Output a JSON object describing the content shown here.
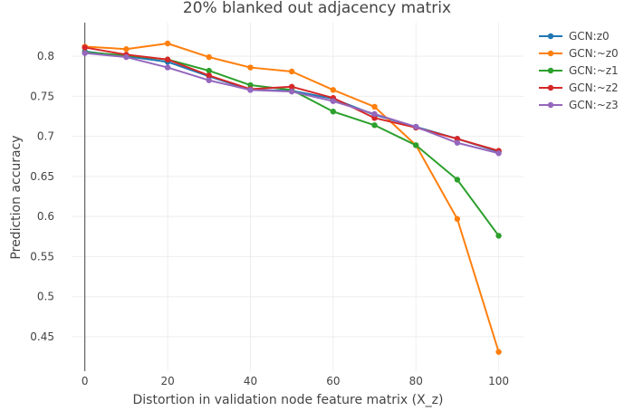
{
  "chart_data": {
    "type": "line",
    "title": "20% blanked out adjacency matrix",
    "xlabel": "Distortion in validation node feature matrix (X_z)",
    "ylabel": "Prediction accuracy",
    "xlim": [
      -3,
      106
    ],
    "ylim": [
      0.407,
      0.842
    ],
    "x_ticks": [
      0,
      20,
      40,
      60,
      80,
      100
    ],
    "x_tick_labels": [
      "0",
      "20",
      "40",
      "60",
      "80",
      "100"
    ],
    "y_ticks": [
      0.45,
      0.5,
      0.55,
      0.6,
      0.65,
      0.7,
      0.75,
      0.8
    ],
    "y_tick_labels": [
      "0.45",
      "0.5",
      "0.55",
      "0.6",
      "0.65",
      "0.7",
      "0.75",
      "0.8"
    ],
    "grid": true,
    "legend_position": "top-right",
    "x": [
      0,
      10,
      20,
      30,
      40,
      50,
      60,
      70,
      80,
      90,
      100
    ],
    "series": [
      {
        "name": "GCN:z0",
        "color": "#1f77b4",
        "values": [
          0.806,
          0.8,
          0.793,
          0.775,
          0.758,
          0.757,
          0.747,
          0.727,
          0.712,
          0.697,
          0.681
        ]
      },
      {
        "name": "GCN:~z0",
        "color": "#ff7f0e",
        "values": [
          0.812,
          0.809,
          0.816,
          0.799,
          0.786,
          0.781,
          0.758,
          0.737,
          0.689,
          0.597,
          0.431
        ]
      },
      {
        "name": "GCN:~z1",
        "color": "#2ca02c",
        "values": [
          0.805,
          0.801,
          0.796,
          0.782,
          0.764,
          0.758,
          0.731,
          0.714,
          0.689,
          0.646,
          0.576
        ]
      },
      {
        "name": "GCN:~z2",
        "color": "#d62728",
        "values": [
          0.811,
          0.802,
          0.796,
          0.776,
          0.759,
          0.762,
          0.748,
          0.723,
          0.711,
          0.697,
          0.682
        ]
      },
      {
        "name": "GCN:~z3",
        "color": "#9467bd",
        "values": [
          0.804,
          0.799,
          0.786,
          0.77,
          0.758,
          0.756,
          0.744,
          0.728,
          0.712,
          0.692,
          0.679
        ]
      }
    ]
  }
}
